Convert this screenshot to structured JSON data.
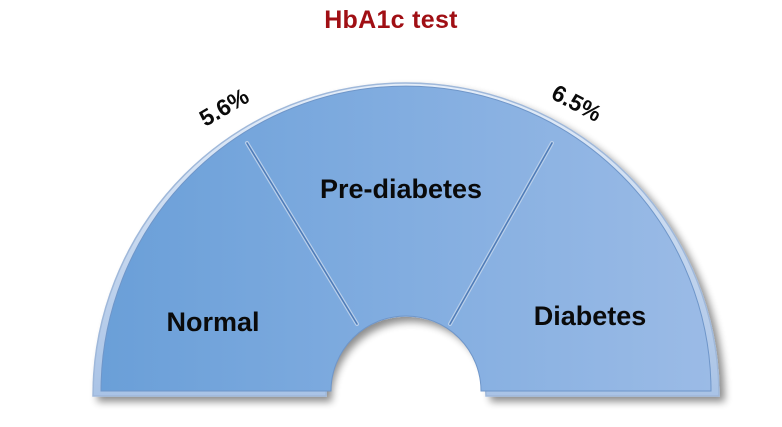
{
  "title": "HbA1c test",
  "gauge": {
    "segments": [
      {
        "label": "Normal"
      },
      {
        "label": "Pre-diabetes"
      },
      {
        "label": "Diabetes"
      }
    ],
    "thresholds": [
      {
        "label": "5.6%"
      },
      {
        "label": "6.5%"
      }
    ],
    "colors": {
      "fill_left": "#6a9fd8",
      "fill_right": "#9bbbe6",
      "rim": "#c9d9ee",
      "divider": "#5a86c0"
    }
  }
}
